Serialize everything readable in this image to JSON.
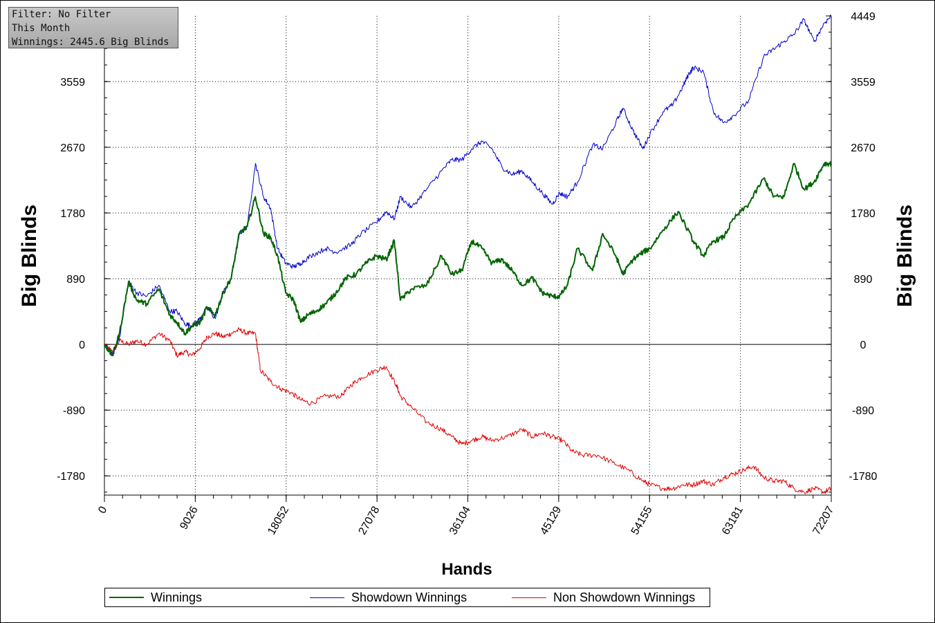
{
  "info_box": {
    "filter": "Filter: No Filter",
    "period": "This Month",
    "winnings": "Winnings: 2445.6 Big Blinds"
  },
  "colors": {
    "winnings": "#006400",
    "showdown": "#0000c8",
    "non_showdown": "#e00000"
  },
  "chart_data": {
    "type": "line",
    "xlabel": "Hands",
    "ylabel": "Big Blinds",
    "ylabel_right": "Big Blinds",
    "xlim": [
      0,
      72207
    ],
    "ylim": [
      -2040,
      4449
    ],
    "x_ticks": [
      "0",
      "9026",
      "18052",
      "27078",
      "36104",
      "45129",
      "54155",
      "63181",
      "72207"
    ],
    "y_ticks": [
      "4449",
      "3559",
      "2670",
      "1780",
      "890",
      "0",
      "-890",
      "-1780"
    ],
    "grid": true,
    "legend_position": "bottom",
    "series": [
      {
        "name": "Winnings",
        "color": "#006400",
        "x": [
          0,
          800,
          1500,
          2400,
          3200,
          4200,
          5400,
          6500,
          7200,
          8000,
          8700,
          9500,
          10200,
          11000,
          11800,
          12600,
          13400,
          14200,
          15000,
          15800,
          16500,
          17200,
          18000,
          18800,
          19500,
          20200,
          21000,
          22000,
          23000,
          24000,
          25000,
          26000,
          27000,
          28000,
          28800,
          29400,
          30500,
          32000,
          33500,
          34500,
          35500,
          36500,
          37500,
          38500,
          39500,
          40500,
          41500,
          42500,
          43500,
          44500,
          45200,
          46000,
          47000,
          48500,
          49500,
          50800,
          51500,
          52500,
          53500,
          54200,
          55500,
          57000,
          58500,
          59500,
          60500,
          61500,
          62500,
          64000,
          65500,
          66500,
          67500,
          68500,
          69500,
          70500,
          71500,
          72207
        ],
        "values": [
          0,
          -150,
          150,
          850,
          600,
          550,
          750,
          400,
          300,
          150,
          250,
          300,
          500,
          400,
          700,
          900,
          1500,
          1600,
          2000,
          1500,
          1450,
          1200,
          700,
          600,
          300,
          400,
          450,
          550,
          700,
          900,
          950,
          1100,
          1200,
          1150,
          1400,
          600,
          750,
          800,
          1200,
          950,
          1000,
          1400,
          1300,
          1100,
          1150,
          1000,
          800,
          900,
          700,
          650,
          650,
          800,
          1300,
          1000,
          1500,
          1200,
          950,
          1150,
          1250,
          1300,
          1550,
          1800,
          1400,
          1200,
          1400,
          1450,
          1700,
          1900,
          2250,
          2000,
          2000,
          2450,
          2100,
          2200,
          2450,
          2446
        ]
      },
      {
        "name": "Showdown Winnings",
        "color": "#0000c8",
        "x": [
          0,
          800,
          1500,
          2400,
          3200,
          4200,
          5400,
          6500,
          7200,
          8000,
          8700,
          9500,
          10200,
          11000,
          11800,
          12600,
          13400,
          14200,
          15000,
          15800,
          16500,
          17200,
          18000,
          18800,
          19500,
          20500,
          22000,
          23000,
          24500,
          25500,
          27000,
          28000,
          28800,
          29400,
          30500,
          32000,
          33500,
          34500,
          35500,
          36500,
          37500,
          38500,
          39500,
          40500,
          41500,
          42500,
          43500,
          44500,
          45200,
          46000,
          47000,
          48500,
          49500,
          50800,
          51500,
          52500,
          53500,
          54200,
          55500,
          56500,
          57500,
          58000,
          58500,
          59500,
          60500,
          61500,
          62500,
          64000,
          65500,
          66500,
          67500,
          68500,
          69500,
          70500,
          71500,
          72207
        ],
        "values": [
          0,
          -150,
          100,
          850,
          700,
          650,
          800,
          450,
          450,
          280,
          250,
          350,
          500,
          350,
          700,
          900,
          1500,
          1600,
          2450,
          2000,
          1850,
          1300,
          1100,
          1050,
          1100,
          1200,
          1300,
          1250,
          1350,
          1500,
          1650,
          1800,
          1700,
          2000,
          1850,
          2100,
          2350,
          2500,
          2500,
          2650,
          2750,
          2650,
          2400,
          2300,
          2350,
          2200,
          2050,
          1900,
          2050,
          2000,
          2200,
          2700,
          2650,
          3000,
          3200,
          2900,
          2650,
          2850,
          3150,
          3250,
          3500,
          3650,
          3750,
          3700,
          3150,
          3000,
          3100,
          3300,
          3900,
          4000,
          4100,
          4200,
          4400,
          4100,
          4350,
          4449
        ]
      },
      {
        "name": "Non Showdown Winnings",
        "color": "#e00000",
        "x": [
          0,
          800,
          1500,
          2400,
          3200,
          4200,
          5400,
          6500,
          7200,
          8000,
          8700,
          9500,
          10200,
          11000,
          11800,
          12600,
          13400,
          14200,
          15000,
          15500,
          16500,
          17500,
          18500,
          19500,
          20500,
          22000,
          23500,
          24500,
          25500,
          27000,
          28000,
          29000,
          29400,
          30500,
          32000,
          33500,
          34500,
          35500,
          36500,
          37500,
          38500,
          40000,
          41500,
          42500,
          43500,
          44500,
          45500,
          46500,
          47500,
          49000,
          50500,
          52000,
          53500,
          54200,
          55500,
          56500,
          57500,
          58500,
          59500,
          60500,
          61500,
          62500,
          63500,
          64500,
          65500,
          66500,
          67500,
          68500,
          69500,
          70500,
          71500,
          72207
        ],
        "values": [
          0,
          -100,
          50,
          0,
          50,
          0,
          150,
          50,
          -150,
          -100,
          -150,
          -50,
          100,
          150,
          100,
          150,
          200,
          150,
          150,
          -350,
          -500,
          -600,
          -650,
          -750,
          -800,
          -700,
          -700,
          -550,
          -450,
          -350,
          -300,
          -550,
          -700,
          -850,
          -1050,
          -1150,
          -1250,
          -1350,
          -1300,
          -1250,
          -1300,
          -1250,
          -1150,
          -1250,
          -1200,
          -1250,
          -1300,
          -1450,
          -1500,
          -1500,
          -1600,
          -1700,
          -1850,
          -1900,
          -1950,
          -1950,
          -1900,
          -1900,
          -1850,
          -1900,
          -1800,
          -1750,
          -1700,
          -1650,
          -1800,
          -1850,
          -1850,
          -1950,
          -2000,
          -1950,
          -2000,
          -1950
        ]
      }
    ]
  }
}
